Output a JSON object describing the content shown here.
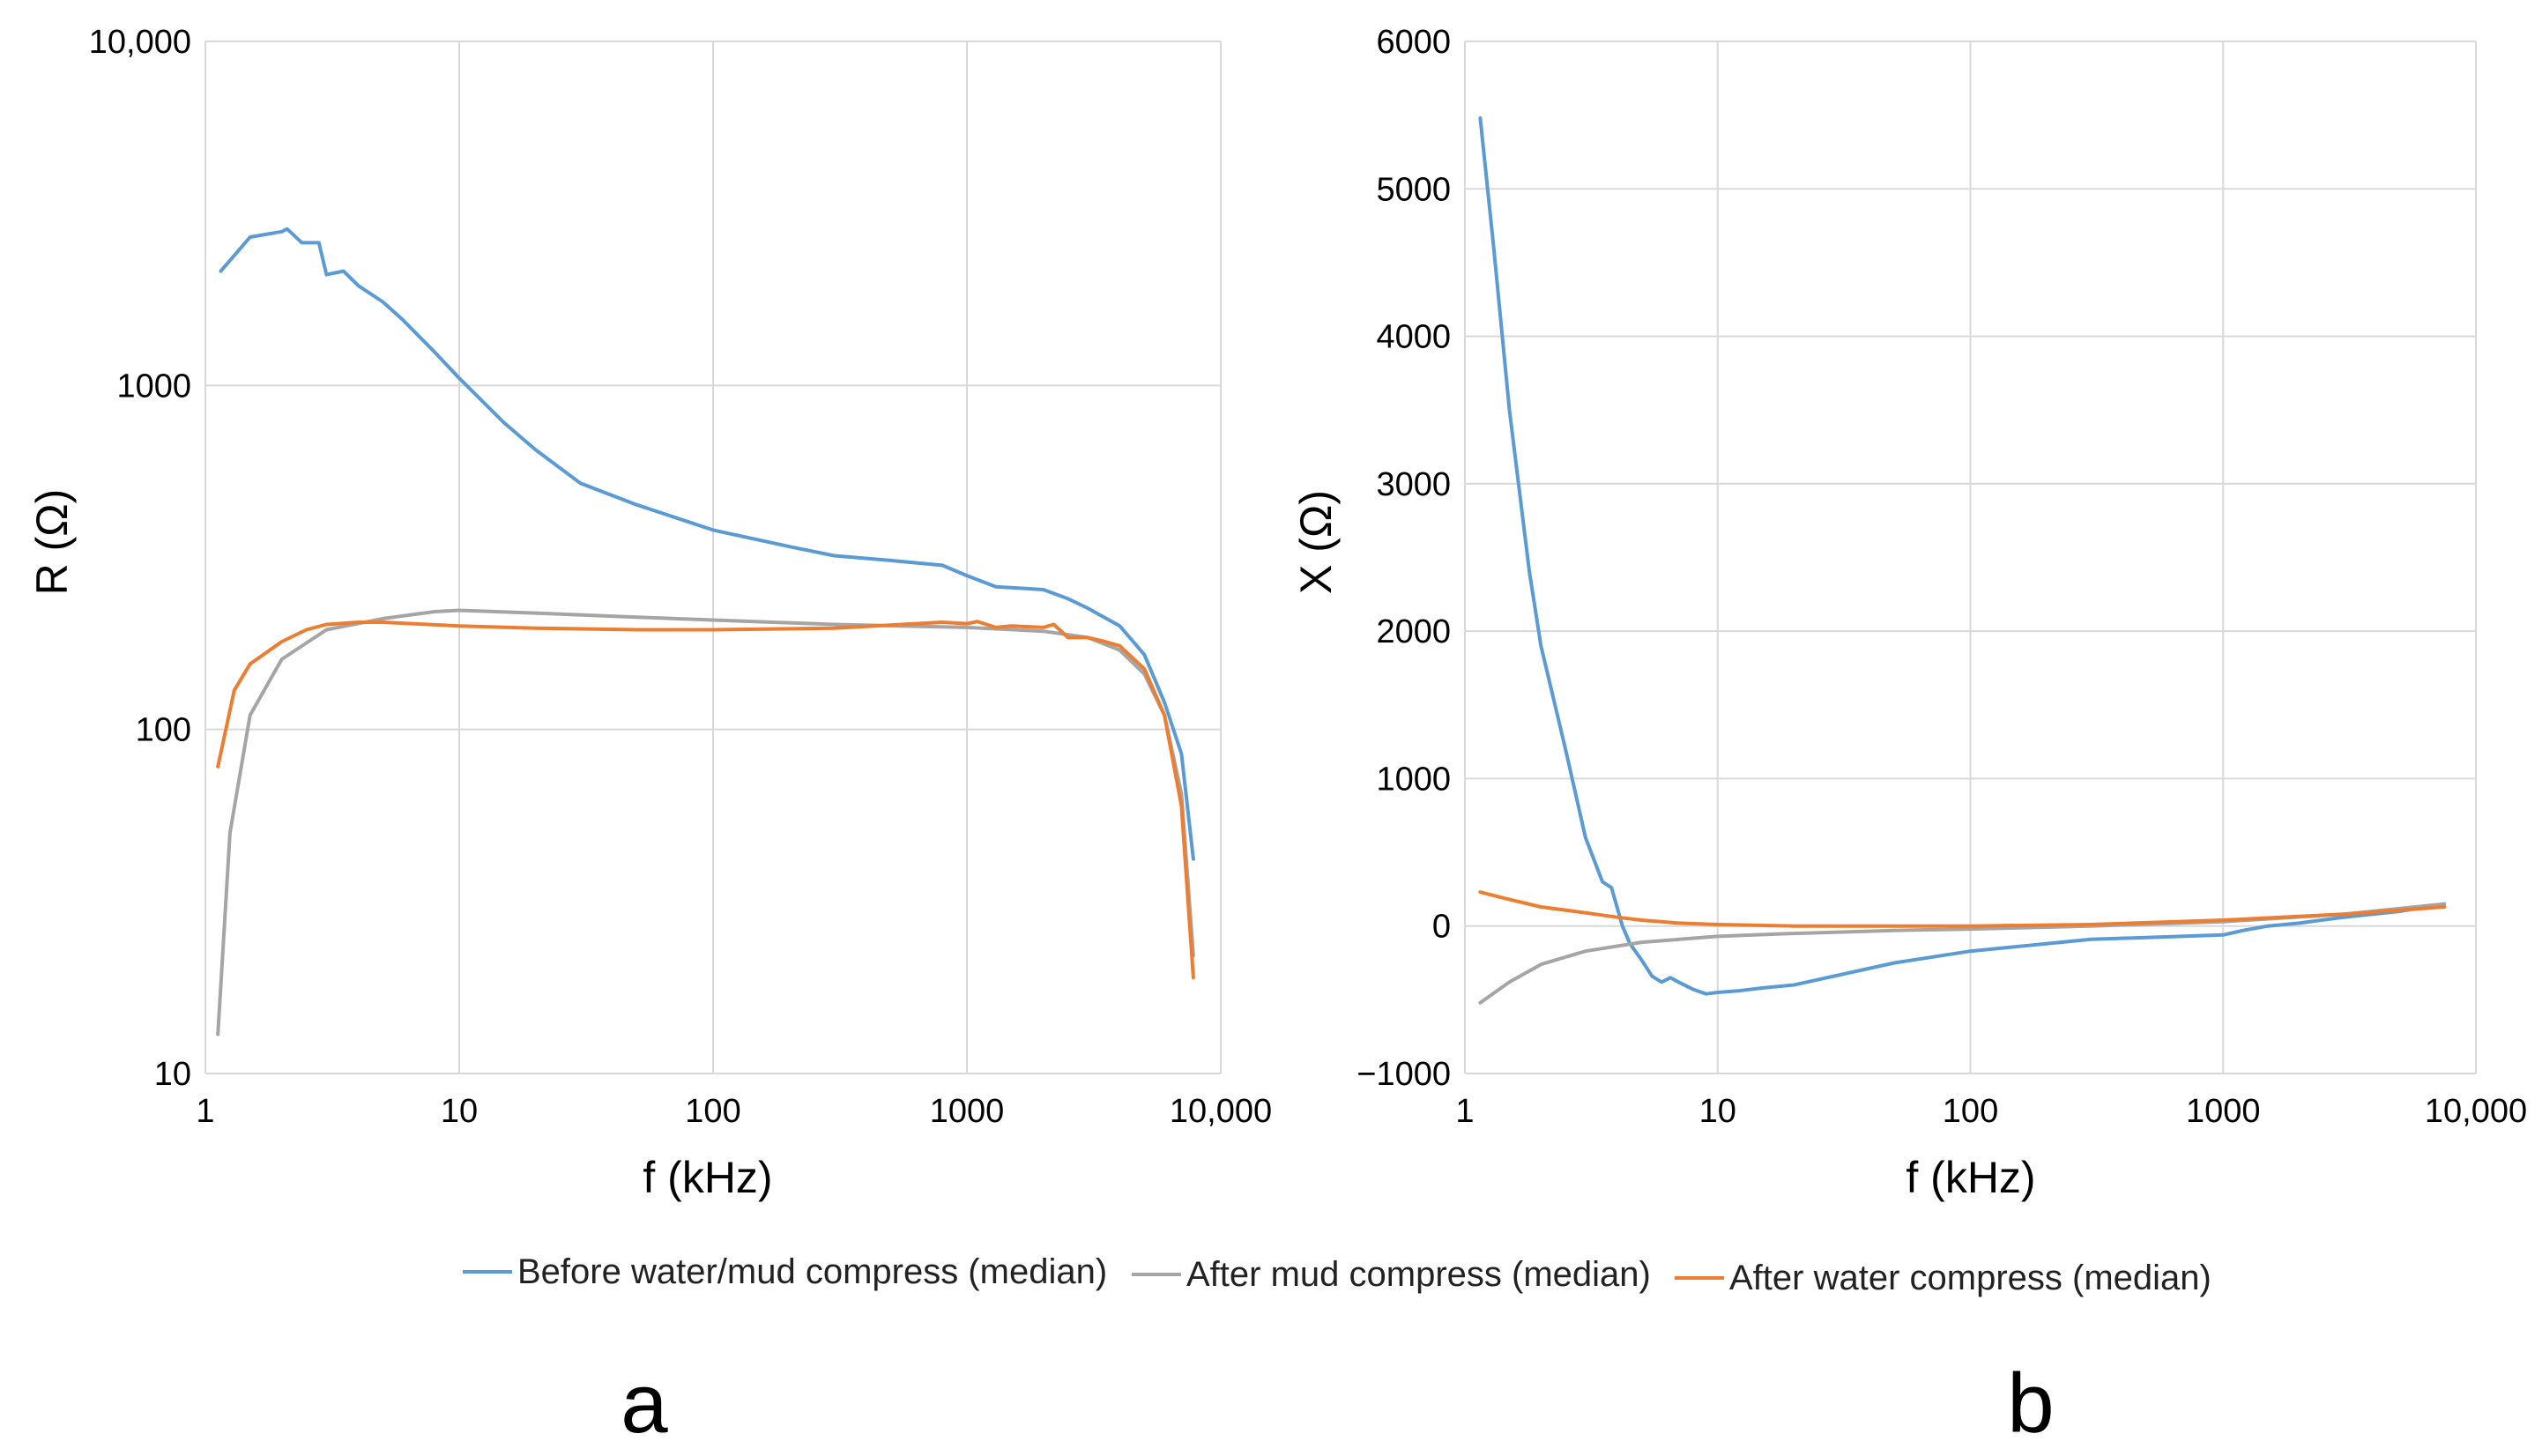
{
  "colors": {
    "before": "#5b9bd5",
    "mud": "#a5a5a5",
    "water": "#ed7d31",
    "grid": "#d9d9d9"
  },
  "legend": [
    {
      "key": "before",
      "label": "Before water/mud compress (median)"
    },
    {
      "key": "mud",
      "label": "After mud compress (median)"
    },
    {
      "key": "water",
      "label": "After water compress (median)"
    }
  ],
  "chart_data": [
    {
      "panel": "a",
      "type": "line",
      "xscale": "log",
      "yscale": "log",
      "xlabel": "f (kHz)",
      "ylabel": "R (Ω)",
      "xlim": [
        1,
        10000
      ],
      "ylim": [
        10,
        10000
      ],
      "xticks": [
        1,
        10,
        100,
        1000,
        10000
      ],
      "xtick_labels": [
        "1",
        "10",
        "100",
        "1000",
        "10,000"
      ],
      "yticks": [
        10,
        100,
        1000,
        10000
      ],
      "ytick_labels": [
        "10",
        "100",
        "1000",
        "10,000"
      ],
      "series": [
        {
          "key": "before",
          "name": "Before water/mud compress (median)",
          "x": [
            1.15,
            1.5,
            2.0,
            2.1,
            2.4,
            2.8,
            3.0,
            3.5,
            4.0,
            5.0,
            6.0,
            8.0,
            10,
            15,
            20,
            30,
            50,
            100,
            200,
            300,
            500,
            800,
            1000,
            1300,
            2000,
            2500,
            3000,
            4000,
            5000,
            6000,
            7000,
            7800
          ],
          "y": [
            2150,
            2700,
            2800,
            2850,
            2600,
            2600,
            2100,
            2150,
            1950,
            1750,
            1550,
            1250,
            1050,
            780,
            650,
            520,
            450,
            380,
            340,
            320,
            310,
            300,
            280,
            260,
            255,
            240,
            225,
            200,
            165,
            120,
            85,
            42
          ]
        },
        {
          "key": "mud",
          "name": "After mud compress (median)",
          "x": [
            1.12,
            1.25,
            1.5,
            2.0,
            3.0,
            5.0,
            8.0,
            10,
            20,
            50,
            100,
            300,
            1000,
            2000,
            3000,
            4000,
            5000,
            6000,
            7000,
            7800
          ],
          "y": [
            13,
            50,
            110,
            160,
            195,
            210,
            220,
            222,
            218,
            212,
            208,
            202,
            198,
            193,
            185,
            170,
            145,
            110,
            65,
            22
          ]
        },
        {
          "key": "water",
          "name": "After water compress (median)",
          "x": [
            1.12,
            1.3,
            1.5,
            2.0,
            2.5,
            3.0,
            4.0,
            5.0,
            10,
            20,
            50,
            100,
            300,
            800,
            1000,
            1100,
            1300,
            1500,
            2000,
            2200,
            2500,
            3000,
            3500,
            4000,
            5000,
            6000,
            7000,
            7800
          ],
          "y": [
            78,
            130,
            155,
            180,
            195,
            202,
            205,
            205,
            200,
            197,
            195,
            195,
            197,
            205,
            203,
            206,
            198,
            200,
            198,
            202,
            185,
            185,
            180,
            175,
            150,
            110,
            60,
            19
          ]
        }
      ]
    },
    {
      "panel": "b",
      "type": "line",
      "xscale": "log",
      "yscale": "linear",
      "xlabel": "f (kHz)",
      "ylabel": "X (Ω)",
      "xlim": [
        1,
        10000
      ],
      "ylim": [
        -1000,
        6000
      ],
      "xticks": [
        1,
        10,
        100,
        1000,
        10000
      ],
      "xtick_labels": [
        "1",
        "10",
        "100",
        "1000",
        "10,000"
      ],
      "yticks": [
        -1000,
        0,
        1000,
        2000,
        3000,
        4000,
        5000,
        6000
      ],
      "ytick_labels": [
        "−1000",
        "0",
        "1000",
        "2000",
        "3000",
        "4000",
        "5000",
        "6000"
      ],
      "series": [
        {
          "key": "before",
          "name": "Before water/mud compress (median)",
          "x": [
            1.15,
            1.3,
            1.5,
            1.8,
            2.0,
            2.5,
            3.0,
            3.5,
            3.8,
            4.2,
            4.5,
            5.0,
            5.5,
            6.0,
            6.5,
            7.0,
            8.0,
            9.0,
            10,
            12,
            15,
            20,
            50,
            100,
            300,
            1000,
            1200,
            1500,
            2000,
            3000,
            5000,
            7500
          ],
          "y": [
            5480,
            4600,
            3500,
            2400,
            1900,
            1200,
            600,
            300,
            260,
            0,
            -120,
            -230,
            -340,
            -380,
            -350,
            -380,
            -430,
            -460,
            -450,
            -440,
            -420,
            -400,
            -250,
            -170,
            -90,
            -60,
            -30,
            0,
            20,
            60,
            100,
            150
          ]
        },
        {
          "key": "mud",
          "name": "After mud compress (median)",
          "x": [
            1.15,
            1.5,
            2.0,
            3.0,
            5.0,
            10,
            20,
            50,
            100,
            300,
            1000,
            3000,
            7500
          ],
          "y": [
            -520,
            -380,
            -260,
            -170,
            -110,
            -70,
            -50,
            -30,
            -20,
            0,
            30,
            80,
            150
          ]
        },
        {
          "key": "water",
          "name": "After water compress (median)",
          "x": [
            1.15,
            1.5,
            2.0,
            3.0,
            4.0,
            5.0,
            7.0,
            10,
            20,
            50,
            100,
            300,
            1000,
            3000,
            7500
          ],
          "y": [
            230,
            180,
            130,
            90,
            60,
            40,
            20,
            10,
            0,
            0,
            0,
            10,
            40,
            80,
            130
          ]
        }
      ]
    }
  ]
}
